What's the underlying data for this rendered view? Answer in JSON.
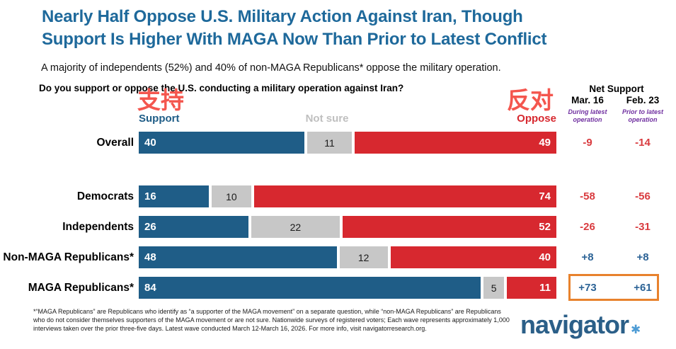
{
  "header": {
    "title_line1": "Nearly Half Oppose U.S. Military Action Against Iran, Though",
    "title_line2": "Support Is Higher With MAGA Now Than Prior to Latest Conflict",
    "subtitle": "A majority of independents (52%) and 40% of non-MAGA Republicans* oppose the military operation.",
    "question": "Do you support or oppose the U.S. conducting a military operation against Iran?"
  },
  "annotations": {
    "support_cn": "支持",
    "oppose_cn": "反对"
  },
  "legend": {
    "support": "Support",
    "not_sure": "Not sure",
    "oppose": "Oppose"
  },
  "net_support": {
    "header": "Net Support",
    "col1": {
      "date": "Mar. 16",
      "caption": "During latest operation"
    },
    "col2": {
      "date": "Feb. 23",
      "caption": "Prior to latest operation"
    }
  },
  "chart_data": {
    "type": "bar",
    "stacked": true,
    "orientation": "horizontal",
    "xlim": [
      0,
      100
    ],
    "grid": false,
    "categories": [
      "Overall",
      "Democrats",
      "Independents",
      "Non-MAGA Republicans*",
      "MAGA Republicans*"
    ],
    "series": [
      {
        "name": "Support",
        "color": "#1f5d87",
        "values": [
          40,
          16,
          26,
          48,
          84
        ]
      },
      {
        "name": "Not sure",
        "color": "#c7c7c7",
        "values": [
          11,
          10,
          22,
          12,
          5
        ]
      },
      {
        "name": "Oppose",
        "color": "#d7282f",
        "values": [
          49,
          74,
          52,
          40,
          11
        ]
      }
    ],
    "net_support_mar16": [
      -9,
      -58,
      -26,
      8,
      73
    ],
    "net_support_feb23": [
      -14,
      -56,
      -31,
      8,
      61
    ],
    "rows": [
      {
        "label": "Overall",
        "support": 40,
        "not_sure": 11,
        "oppose": 49,
        "net_mar16": "-9",
        "net_feb23": "-14",
        "highlight": false
      },
      {
        "label": "Democrats",
        "support": 16,
        "not_sure": 10,
        "oppose": 74,
        "net_mar16": "-58",
        "net_feb23": "-56",
        "highlight": false
      },
      {
        "label": "Independents",
        "support": 26,
        "not_sure": 22,
        "oppose": 52,
        "net_mar16": "-26",
        "net_feb23": "-31",
        "highlight": false
      },
      {
        "label": "Non-MAGA Republicans*",
        "support": 48,
        "not_sure": 12,
        "oppose": 40,
        "net_mar16": "+8",
        "net_feb23": "+8",
        "highlight": false
      },
      {
        "label": "MAGA Republicans*",
        "support": 84,
        "not_sure": 5,
        "oppose": 11,
        "net_mar16": "+73",
        "net_feb23": "+61",
        "highlight": true
      }
    ]
  },
  "colors": {
    "title_blue": "#1e699b",
    "bar_blue": "#1f5d87",
    "bar_gray": "#c7c7c7",
    "bar_red": "#d7282f",
    "net_positive_blue": "#2c6396",
    "net_negative_red": "#d93b3f",
    "caption_purple": "#7030a0",
    "highlight_orange": "#e8822d",
    "annotation_red": "#f4564e",
    "logo_navy": "#2b5f88",
    "logo_star_blue": "#4e9cd5"
  },
  "footnote": "*“MAGA Republicans” are Republicans who identify as “a supporter of the MAGA movement” on a separate question, while “non-MAGA Republicans” are Republicans who do not consider themselves supporters of the MAGA movement or are not sure. Nationwide surveys of registered voters; Each wave represents approximately 1,000 interviews taken over the prior three-five days. Latest wave conducted March 12-March 16, 2026. For more info, visit navigatorresearch.org.",
  "logo": {
    "text": "navigator",
    "star": "✱"
  }
}
